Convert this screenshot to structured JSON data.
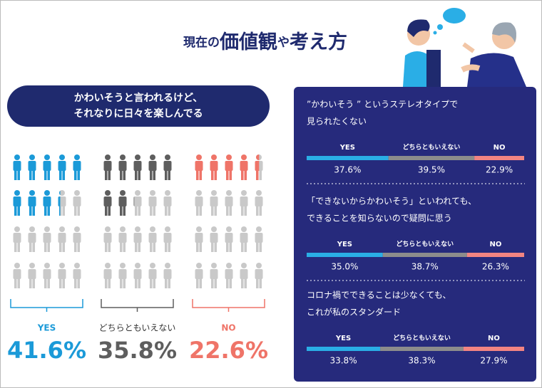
{
  "title_parts": [
    "現在の",
    "価値観",
    "や",
    "考え方"
  ],
  "chart_data": [
    {
      "type": "pictogram",
      "title_lines": [
        "かわいそうと言われるけど、",
        "それなりに日々を楽しんでる"
      ],
      "categories": [
        "YES",
        "どちらともいえない",
        "NO"
      ],
      "values": [
        41.6,
        35.8,
        22.6
      ],
      "value_labels": [
        "41.6%",
        "35.8%",
        "22.6%"
      ],
      "colors": [
        "#1b9ad8",
        "#5e5e5e",
        "#ef7468"
      ]
    },
    {
      "type": "stacked-bar",
      "categories": [
        "YES",
        "どちらともいえない",
        "NO"
      ],
      "colors": [
        "#2aaee6",
        "#8c8c8c",
        "#f28482"
      ],
      "rows": [
        {
          "label_lines": [
            "”かわいそう ” というステレオタイプで",
            "見られたくない"
          ],
          "values": [
            37.6,
            39.5,
            22.9
          ],
          "value_labels": [
            "37.6%",
            "39.5%",
            "22.9%"
          ]
        },
        {
          "label_lines": [
            "「できないからかわいそう」といわれても、",
            "できることを知らないので疑問に思う"
          ],
          "values": [
            35.0,
            38.7,
            26.3
          ],
          "value_labels": [
            "35.0%",
            "38.7%",
            "26.3%"
          ]
        },
        {
          "label_lines": [
            "コロナ禍でできることは少なくても、",
            "これが私のスタンダード"
          ],
          "values": [
            33.8,
            38.3,
            27.9
          ],
          "value_labels": [
            "33.8%",
            "38.3%",
            "27.9%"
          ]
        }
      ]
    }
  ]
}
